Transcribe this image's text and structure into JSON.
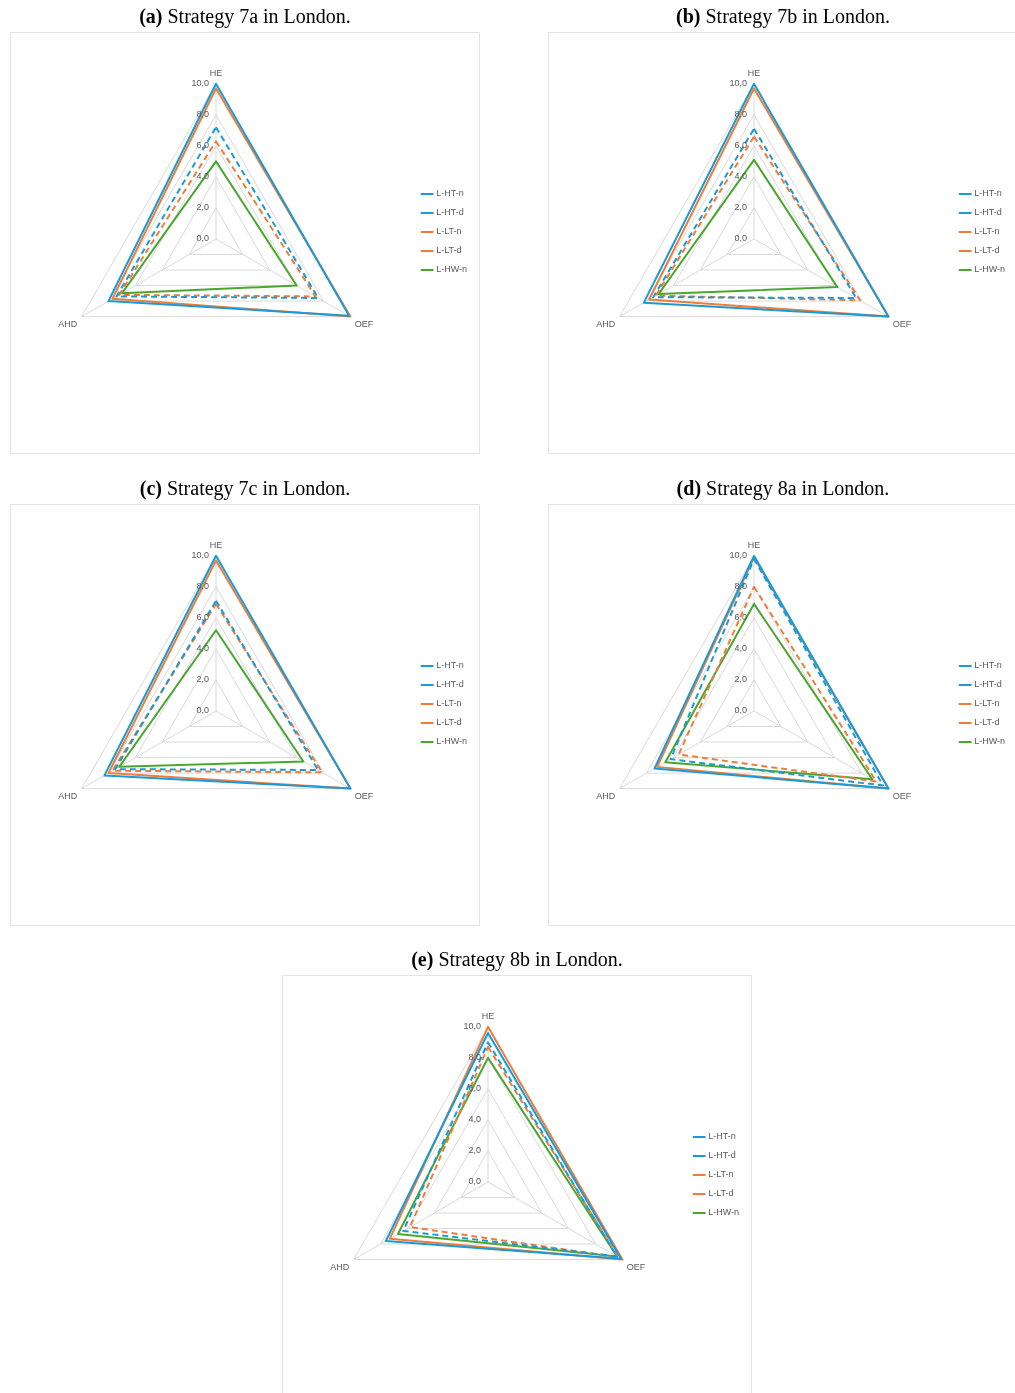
{
  "chart_data": [
    {
      "type": "radar",
      "title": "(a) Strategy 7a in London.",
      "categories": [
        "HE",
        "OEF",
        "AHD"
      ],
      "ylim": [
        0,
        10
      ],
      "yticks": [
        {
          "value": 0,
          "label": "0,0"
        },
        {
          "value": 2,
          "label": "2,0"
        },
        {
          "value": 4,
          "label": "4,0"
        },
        {
          "value": 6,
          "label": "6,0"
        },
        {
          "value": 8,
          "label": "8,0"
        },
        {
          "value": 10,
          "label": "10,0"
        }
      ],
      "grid": true,
      "legend": "right",
      "marker": "none",
      "series": [
        {
          "name": "L-HT-n",
          "color": "#1a9ad6",
          "line_style": "solid",
          "values": [
            10.0,
            9.9,
            8.0
          ]
        },
        {
          "name": "L-HT-d",
          "color": "#1a9ad6",
          "line_style": "dashed",
          "values": [
            7.2,
            7.6,
            7.4
          ]
        },
        {
          "name": "L-LT-n",
          "color": "#f07c3a",
          "line_style": "solid",
          "values": [
            9.7,
            10.0,
            7.7
          ]
        },
        {
          "name": "L-LT-d",
          "color": "#f07c3a",
          "line_style": "dashed",
          "values": [
            6.3,
            7.4,
            7.2
          ]
        },
        {
          "name": "L-HW-n",
          "color": "#4aa62f",
          "line_style": "solid",
          "values": [
            5.0,
            6.0,
            7.0
          ]
        }
      ]
    },
    {
      "type": "radar",
      "title": "(b) Strategy 7b in London.",
      "categories": [
        "HE",
        "OEF",
        "AHD"
      ],
      "ylim": [
        0,
        10
      ],
      "yticks": [
        {
          "value": 0,
          "label": "0,0"
        },
        {
          "value": 2,
          "label": "2,0"
        },
        {
          "value": 4,
          "label": "4,0"
        },
        {
          "value": 6,
          "label": "6,0"
        },
        {
          "value": 8,
          "label": "8,0"
        },
        {
          "value": 10,
          "label": "10,0"
        }
      ],
      "grid": true,
      "legend": "right",
      "marker": "none",
      "series": [
        {
          "name": "L-HT-n",
          "color": "#1a9ad6",
          "line_style": "solid",
          "values": [
            10.0,
            10.0,
            8.2
          ]
        },
        {
          "name": "L-HT-d",
          "color": "#1a9ad6",
          "line_style": "dashed",
          "values": [
            7.1,
            7.6,
            7.5
          ]
        },
        {
          "name": "L-LT-n",
          "color": "#f07c3a",
          "line_style": "solid",
          "values": [
            9.7,
            10.0,
            7.8
          ]
        },
        {
          "name": "L-LT-d",
          "color": "#f07c3a",
          "line_style": "dashed",
          "values": [
            6.6,
            7.9,
            7.3
          ]
        },
        {
          "name": "L-HW-n",
          "color": "#4aa62f",
          "line_style": "solid",
          "values": [
            5.1,
            6.2,
            7.1
          ]
        }
      ]
    },
    {
      "type": "radar",
      "title": "(c) Strategy 7c in London.",
      "categories": [
        "HE",
        "OEF",
        "AHD"
      ],
      "ylim": [
        0,
        10
      ],
      "yticks": [
        {
          "value": 0,
          "label": "0,0"
        },
        {
          "value": 2,
          "label": "2,0"
        },
        {
          "value": 4,
          "label": "4,0"
        },
        {
          "value": 6,
          "label": "6,0"
        },
        {
          "value": 8,
          "label": "8,0"
        },
        {
          "value": 10,
          "label": "10,0"
        }
      ],
      "grid": true,
      "legend": "right",
      "marker": "none",
      "series": [
        {
          "name": "L-HT-n",
          "color": "#1a9ad6",
          "line_style": "solid",
          "values": [
            10.0,
            10.0,
            8.3
          ]
        },
        {
          "name": "L-HT-d",
          "color": "#1a9ad6",
          "line_style": "dashed",
          "values": [
            7.1,
            7.6,
            7.5
          ]
        },
        {
          "name": "L-LT-n",
          "color": "#f07c3a",
          "line_style": "solid",
          "values": [
            9.7,
            10.0,
            8.0
          ]
        },
        {
          "name": "L-LT-d",
          "color": "#f07c3a",
          "line_style": "dashed",
          "values": [
            6.9,
            7.9,
            7.7
          ]
        },
        {
          "name": "L-HW-n",
          "color": "#4aa62f",
          "line_style": "solid",
          "values": [
            5.2,
            6.5,
            7.2
          ]
        }
      ]
    },
    {
      "type": "radar",
      "title": "(d) Strategy 8a in London.",
      "categories": [
        "HE",
        "OEF",
        "AHD"
      ],
      "ylim": [
        0,
        10
      ],
      "yticks": [
        {
          "value": 0,
          "label": "0,0"
        },
        {
          "value": 2,
          "label": "2,0"
        },
        {
          "value": 4,
          "label": "4,0"
        },
        {
          "value": 6,
          "label": "6,0"
        },
        {
          "value": 8,
          "label": "8,0"
        },
        {
          "value": 10,
          "label": "10,0"
        }
      ],
      "grid": true,
      "legend": "right",
      "marker": "none",
      "series": [
        {
          "name": "L-HT-n",
          "color": "#1a9ad6",
          "line_style": "solid",
          "values": [
            10.0,
            10.0,
            7.4
          ]
        },
        {
          "name": "L-HT-d",
          "color": "#1a9ad6",
          "line_style": "dashed",
          "values": [
            9.8,
            9.6,
            6.2
          ]
        },
        {
          "name": "L-LT-n",
          "color": "#f07c3a",
          "line_style": "solid",
          "values": [
            9.9,
            10.0,
            7.2
          ]
        },
        {
          "name": "L-LT-d",
          "color": "#f07c3a",
          "line_style": "dashed",
          "values": [
            8.0,
            9.1,
            5.6
          ]
        },
        {
          "name": "L-HW-n",
          "color": "#4aa62f",
          "line_style": "solid",
          "values": [
            6.9,
            8.8,
            6.6
          ]
        }
      ]
    },
    {
      "type": "radar",
      "title": "(e) Strategy 8b in London.",
      "categories": [
        "HE",
        "OEF",
        "AHD"
      ],
      "ylim": [
        0,
        10
      ],
      "yticks": [
        {
          "value": 0,
          "label": "0,0"
        },
        {
          "value": 2,
          "label": "2,0"
        },
        {
          "value": 4,
          "label": "4,0"
        },
        {
          "value": 6,
          "label": "6,0"
        },
        {
          "value": 8,
          "label": "8,0"
        },
        {
          "value": 10,
          "label": "10,0"
        }
      ],
      "grid": true,
      "legend": "right",
      "marker": "none",
      "series": [
        {
          "name": "L-HT-n",
          "color": "#1a9ad6",
          "line_style": "solid",
          "values": [
            9.6,
            9.9,
            7.6
          ]
        },
        {
          "name": "L-HT-d",
          "color": "#1a9ad6",
          "line_style": "dashed",
          "values": [
            9.0,
            9.6,
            6.3
          ]
        },
        {
          "name": "L-LT-n",
          "color": "#f07c3a",
          "line_style": "solid",
          "values": [
            10.0,
            10.0,
            7.3
          ]
        },
        {
          "name": "L-LT-d",
          "color": "#f07c3a",
          "line_style": "dashed",
          "values": [
            8.7,
            9.7,
            5.8
          ]
        },
        {
          "name": "L-HW-n",
          "color": "#4aa62f",
          "line_style": "solid",
          "values": [
            8.0,
            9.6,
            6.7
          ]
        }
      ]
    }
  ]
}
